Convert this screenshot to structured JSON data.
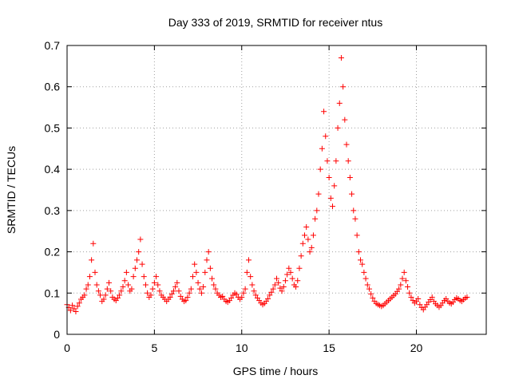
{
  "chart_data": {
    "type": "scatter",
    "title": "Day 333 of 2019, SRMTID for receiver ntus",
    "xlabel": "GPS time / hours",
    "ylabel": "SRMTID / TECUs",
    "xlim": [
      0,
      24
    ],
    "ylim": [
      0,
      0.7
    ],
    "xticks": [
      0,
      5,
      10,
      15,
      20
    ],
    "yticks": [
      0,
      0.1,
      0.2,
      0.3,
      0.4,
      0.5,
      0.6,
      0.7
    ],
    "xtick_labels": [
      "0",
      "5",
      "10",
      "15",
      "20"
    ],
    "ytick_labels": [
      "0",
      "0.1",
      "0.2",
      "0.3",
      "0.4",
      "0.5",
      "0.6",
      "0.7"
    ],
    "grid": true,
    "marker": "+",
    "color": "#ff0000",
    "series": [
      {
        "name": "SRMTID",
        "x_start": 0.0,
        "x_step": 0.1,
        "values": [
          0.072,
          0.065,
          0.058,
          0.07,
          0.062,
          0.055,
          0.068,
          0.076,
          0.085,
          0.09,
          0.095,
          0.11,
          0.12,
          0.14,
          0.18,
          0.22,
          0.15,
          0.12,
          0.105,
          0.095,
          0.08,
          0.085,
          0.095,
          0.11,
          0.125,
          0.105,
          0.09,
          0.085,
          0.082,
          0.088,
          0.095,
          0.105,
          0.115,
          0.13,
          0.15,
          0.12,
          0.105,
          0.11,
          0.14,
          0.16,
          0.18,
          0.2,
          0.23,
          0.17,
          0.14,
          0.12,
          0.1,
          0.09,
          0.095,
          0.11,
          0.125,
          0.14,
          0.12,
          0.105,
          0.095,
          0.09,
          0.085,
          0.08,
          0.085,
          0.09,
          0.098,
          0.105,
          0.115,
          0.125,
          0.105,
          0.092,
          0.085,
          0.08,
          0.082,
          0.09,
          0.1,
          0.11,
          0.14,
          0.17,
          0.15,
          0.125,
          0.11,
          0.1,
          0.115,
          0.15,
          0.18,
          0.2,
          0.16,
          0.135,
          0.12,
          0.11,
          0.1,
          0.095,
          0.09,
          0.092,
          0.085,
          0.08,
          0.078,
          0.082,
          0.088,
          0.095,
          0.1,
          0.097,
          0.09,
          0.085,
          0.09,
          0.1,
          0.11,
          0.15,
          0.18,
          0.14,
          0.12,
          0.105,
          0.095,
          0.088,
          0.082,
          0.076,
          0.072,
          0.075,
          0.08,
          0.086,
          0.095,
          0.102,
          0.11,
          0.12,
          0.135,
          0.125,
          0.112,
          0.105,
          0.115,
          0.13,
          0.145,
          0.16,
          0.15,
          0.135,
          0.12,
          0.115,
          0.13,
          0.16,
          0.19,
          0.22,
          0.24,
          0.26,
          0.23,
          0.2,
          0.21,
          0.24,
          0.28,
          0.3,
          0.34,
          0.4,
          0.45,
          0.54,
          0.48,
          0.42,
          0.38,
          0.33,
          0.31,
          0.36,
          0.42,
          0.5,
          0.56,
          0.67,
          0.6,
          0.52,
          0.46,
          0.42,
          0.38,
          0.34,
          0.3,
          0.28,
          0.24,
          0.2,
          0.18,
          0.17,
          0.15,
          0.135,
          0.12,
          0.11,
          0.098,
          0.088,
          0.08,
          0.075,
          0.072,
          0.07,
          0.068,
          0.07,
          0.074,
          0.078,
          0.082,
          0.086,
          0.09,
          0.094,
          0.098,
          0.104,
          0.11,
          0.12,
          0.135,
          0.15,
          0.13,
          0.115,
          0.1,
          0.09,
          0.082,
          0.076,
          0.08,
          0.086,
          0.072,
          0.065,
          0.06,
          0.066,
          0.072,
          0.078,
          0.084,
          0.09,
          0.08,
          0.074,
          0.07,
          0.066,
          0.07,
          0.076,
          0.082,
          0.086,
          0.08,
          0.076,
          0.074,
          0.078,
          0.084,
          0.088,
          0.086,
          0.082,
          0.08,
          0.084,
          0.088,
          0.09
        ]
      }
    ]
  }
}
